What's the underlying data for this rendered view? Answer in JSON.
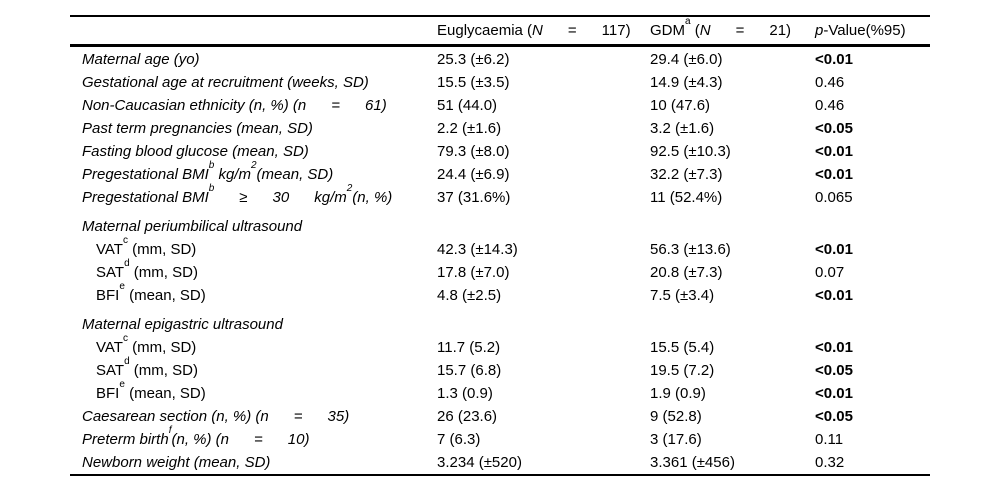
{
  "colors": {
    "background": "#ffffff",
    "text": "#000000",
    "rule": "#000000"
  },
  "table": {
    "columns": [
      {
        "key": "label",
        "parts": []
      },
      {
        "key": "euglycaemia",
        "parts": [
          {
            "t": "Euglycaemia ("
          },
          {
            "i": "N"
          },
          {
            "t": "      =      117)"
          }
        ]
      },
      {
        "key": "gdm",
        "parts": [
          {
            "t": "GDM"
          },
          {
            "sup": "a"
          },
          {
            "t": " ("
          },
          {
            "i": "N"
          },
          {
            "t": "      =      21)"
          }
        ]
      },
      {
        "key": "pvalue",
        "parts": [
          {
            "i": "p"
          },
          {
            "t": "-Value(%95)"
          }
        ]
      }
    ],
    "rows": [
      {
        "type": "data",
        "italic": true,
        "indent": false,
        "gap": false,
        "label_parts": [
          {
            "t": "Maternal age (yo)"
          }
        ],
        "eug": "25.3 (±6.2)",
        "gdm": "29.4 (±6.0)",
        "p": "<0.01",
        "p_bold": true
      },
      {
        "type": "data",
        "italic": true,
        "indent": false,
        "gap": false,
        "label_parts": [
          {
            "t": "Gestational age at recruitment (weeks, SD)"
          }
        ],
        "eug": "15.5 (±3.5)",
        "gdm": "14.9 (±4.3)",
        "p": "0.46",
        "p_bold": false
      },
      {
        "type": "data",
        "italic": true,
        "indent": false,
        "gap": false,
        "label_parts": [
          {
            "t": "Non-Caucasian ethnicity (n, %) (n      =      61)"
          }
        ],
        "eug": "51 (44.0)",
        "gdm": "10 (47.6)",
        "p": "0.46",
        "p_bold": false
      },
      {
        "type": "data",
        "italic": true,
        "indent": false,
        "gap": false,
        "label_parts": [
          {
            "t": "Past term pregnancies (mean, SD)"
          }
        ],
        "eug": "2.2 (±1.6)",
        "gdm": "3.2 (±1.6)",
        "p": "<0.05",
        "p_bold": true
      },
      {
        "type": "data",
        "italic": true,
        "indent": false,
        "gap": false,
        "label_parts": [
          {
            "t": "Fasting blood glucose (mean, SD)"
          }
        ],
        "eug": "79.3 (±8.0)",
        "gdm": "92.5 (±10.3)",
        "p": "<0.01",
        "p_bold": true
      },
      {
        "type": "data",
        "italic": true,
        "indent": false,
        "gap": false,
        "label_parts": [
          {
            "t": "Pregestational BMI"
          },
          {
            "sup": "b"
          },
          {
            "t": " kg/m"
          },
          {
            "sup": "2"
          },
          {
            "t": "(mean, SD)"
          }
        ],
        "eug": "24.4 (±6.9)",
        "gdm": "32.2 (±7.3)",
        "p": "<0.01",
        "p_bold": true
      },
      {
        "type": "data",
        "italic": true,
        "indent": false,
        "gap": false,
        "label_parts": [
          {
            "t": "Pregestational BMI"
          },
          {
            "sup": "b"
          },
          {
            "t": "      ≥      30      kg/m"
          },
          {
            "sup": "2"
          },
          {
            "t": "(n, %)"
          }
        ],
        "eug": "37 (31.6%)",
        "gdm": "11 (52.4%)",
        "p": "0.065",
        "p_bold": false
      },
      {
        "type": "section",
        "italic": true,
        "indent": false,
        "gap": true,
        "label_parts": [
          {
            "t": "Maternal periumbilical ultrasound"
          }
        ],
        "eug": "",
        "gdm": "",
        "p": "",
        "p_bold": false
      },
      {
        "type": "data",
        "italic": false,
        "indent": true,
        "gap": false,
        "label_parts": [
          {
            "t": "VAT"
          },
          {
            "sup": "c"
          },
          {
            "t": " (mm, SD)"
          }
        ],
        "eug": "42.3 (±14.3)",
        "gdm": "56.3 (±13.6)",
        "p": "<0.01",
        "p_bold": true
      },
      {
        "type": "data",
        "italic": false,
        "indent": true,
        "gap": false,
        "label_parts": [
          {
            "t": "SAT"
          },
          {
            "sup": "d"
          },
          {
            "t": " (mm, SD)"
          }
        ],
        "eug": "17.8 (±7.0)",
        "gdm": "20.8 (±7.3)",
        "p": "0.07",
        "p_bold": false
      },
      {
        "type": "data",
        "italic": false,
        "indent": true,
        "gap": false,
        "label_parts": [
          {
            "t": "BFI"
          },
          {
            "sup": "e"
          },
          {
            "t": " (mean, SD)"
          }
        ],
        "eug": "4.8 (±2.5)",
        "gdm": "7.5 (±3.4)",
        "p": "<0.01",
        "p_bold": true
      },
      {
        "type": "section",
        "italic": true,
        "indent": false,
        "gap": true,
        "label_parts": [
          {
            "t": "Maternal epigastric ultrasound"
          }
        ],
        "eug": "",
        "gdm": "",
        "p": "",
        "p_bold": false
      },
      {
        "type": "data",
        "italic": false,
        "indent": true,
        "gap": false,
        "label_parts": [
          {
            "t": "VAT"
          },
          {
            "sup": "c"
          },
          {
            "t": " (mm, SD)"
          }
        ],
        "eug": "11.7 (5.2)",
        "gdm": "15.5 (5.4)",
        "p": "<0.01",
        "p_bold": true
      },
      {
        "type": "data",
        "italic": false,
        "indent": true,
        "gap": false,
        "label_parts": [
          {
            "t": "SAT"
          },
          {
            "sup": "d"
          },
          {
            "t": " (mm, SD)"
          }
        ],
        "eug": "15.7 (6.8)",
        "gdm": "19.5 (7.2)",
        "p": "<0.05",
        "p_bold": true
      },
      {
        "type": "data",
        "italic": false,
        "indent": true,
        "gap": false,
        "label_parts": [
          {
            "t": "BFI"
          },
          {
            "sup": "e"
          },
          {
            "t": " (mean, SD)"
          }
        ],
        "eug": "1.3 (0.9)",
        "gdm": "1.9 (0.9)",
        "p": "<0.01",
        "p_bold": true
      },
      {
        "type": "data",
        "italic": true,
        "indent": false,
        "gap": false,
        "label_parts": [
          {
            "t": "Caesarean section (n, %) (n      =      35)"
          }
        ],
        "eug": "26 (23.6)",
        "gdm": "9 (52.8)",
        "p": "<0.05",
        "p_bold": true
      },
      {
        "type": "data",
        "italic": true,
        "indent": false,
        "gap": false,
        "label_parts": [
          {
            "t": "Preterm birth"
          },
          {
            "sup": "f"
          },
          {
            "t": "(n, %) (n      =      10)"
          }
        ],
        "eug": "7 (6.3)",
        "gdm": "3 (17.6)",
        "p": "0.11",
        "p_bold": false
      },
      {
        "type": "data",
        "italic": true,
        "indent": false,
        "gap": false,
        "label_parts": [
          {
            "t": "Newborn weight (mean, SD)"
          }
        ],
        "eug": "3.234 (±520)",
        "gdm": "3.361 (±456)",
        "p": "0.32",
        "p_bold": false
      }
    ]
  }
}
